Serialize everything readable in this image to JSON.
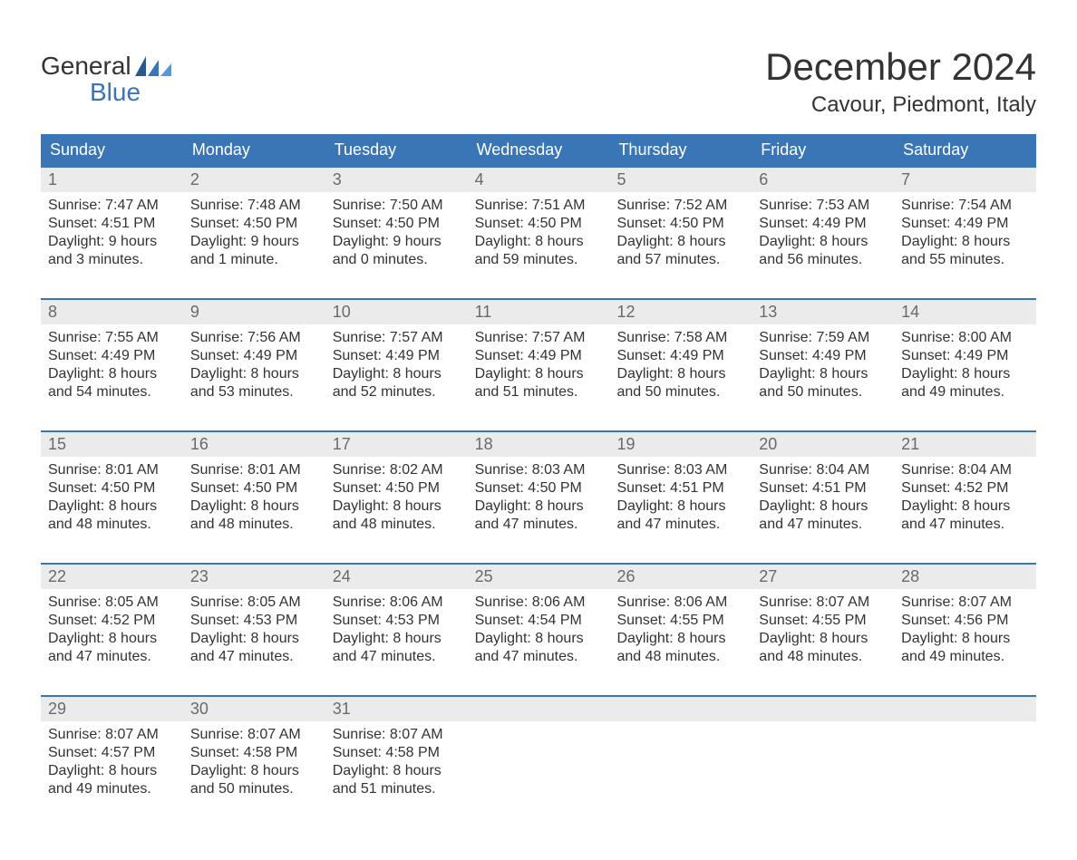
{
  "logo": {
    "word1": "General",
    "word2": "Blue"
  },
  "title": "December 2024",
  "subtitle": "Cavour, Piedmont, Italy",
  "colors": {
    "accent": "#3a76b5",
    "daynum_bg": "#ebebeb",
    "daynum_fg": "#6a6a6a",
    "text": "#333333",
    "bg": "#ffffff",
    "header_fg": "#ffffff"
  },
  "fonts": {
    "title_pt": 42,
    "subtitle_pt": 24,
    "weekday_pt": 18,
    "daynum_pt": 18,
    "body_pt": 16,
    "logo_pt": 28
  },
  "weekdays": [
    "Sunday",
    "Monday",
    "Tuesday",
    "Wednesday",
    "Thursday",
    "Friday",
    "Saturday"
  ],
  "weeks": [
    [
      {
        "num": "1",
        "sunrise": "Sunrise: 7:47 AM",
        "sunset": "Sunset: 4:51 PM",
        "d1": "Daylight: 9 hours",
        "d2": "and 3 minutes."
      },
      {
        "num": "2",
        "sunrise": "Sunrise: 7:48 AM",
        "sunset": "Sunset: 4:50 PM",
        "d1": "Daylight: 9 hours",
        "d2": "and 1 minute."
      },
      {
        "num": "3",
        "sunrise": "Sunrise: 7:50 AM",
        "sunset": "Sunset: 4:50 PM",
        "d1": "Daylight: 9 hours",
        "d2": "and 0 minutes."
      },
      {
        "num": "4",
        "sunrise": "Sunrise: 7:51 AM",
        "sunset": "Sunset: 4:50 PM",
        "d1": "Daylight: 8 hours",
        "d2": "and 59 minutes."
      },
      {
        "num": "5",
        "sunrise": "Sunrise: 7:52 AM",
        "sunset": "Sunset: 4:50 PM",
        "d1": "Daylight: 8 hours",
        "d2": "and 57 minutes."
      },
      {
        "num": "6",
        "sunrise": "Sunrise: 7:53 AM",
        "sunset": "Sunset: 4:49 PM",
        "d1": "Daylight: 8 hours",
        "d2": "and 56 minutes."
      },
      {
        "num": "7",
        "sunrise": "Sunrise: 7:54 AM",
        "sunset": "Sunset: 4:49 PM",
        "d1": "Daylight: 8 hours",
        "d2": "and 55 minutes."
      }
    ],
    [
      {
        "num": "8",
        "sunrise": "Sunrise: 7:55 AM",
        "sunset": "Sunset: 4:49 PM",
        "d1": "Daylight: 8 hours",
        "d2": "and 54 minutes."
      },
      {
        "num": "9",
        "sunrise": "Sunrise: 7:56 AM",
        "sunset": "Sunset: 4:49 PM",
        "d1": "Daylight: 8 hours",
        "d2": "and 53 minutes."
      },
      {
        "num": "10",
        "sunrise": "Sunrise: 7:57 AM",
        "sunset": "Sunset: 4:49 PM",
        "d1": "Daylight: 8 hours",
        "d2": "and 52 minutes."
      },
      {
        "num": "11",
        "sunrise": "Sunrise: 7:57 AM",
        "sunset": "Sunset: 4:49 PM",
        "d1": "Daylight: 8 hours",
        "d2": "and 51 minutes."
      },
      {
        "num": "12",
        "sunrise": "Sunrise: 7:58 AM",
        "sunset": "Sunset: 4:49 PM",
        "d1": "Daylight: 8 hours",
        "d2": "and 50 minutes."
      },
      {
        "num": "13",
        "sunrise": "Sunrise: 7:59 AM",
        "sunset": "Sunset: 4:49 PM",
        "d1": "Daylight: 8 hours",
        "d2": "and 50 minutes."
      },
      {
        "num": "14",
        "sunrise": "Sunrise: 8:00 AM",
        "sunset": "Sunset: 4:49 PM",
        "d1": "Daylight: 8 hours",
        "d2": "and 49 minutes."
      }
    ],
    [
      {
        "num": "15",
        "sunrise": "Sunrise: 8:01 AM",
        "sunset": "Sunset: 4:50 PM",
        "d1": "Daylight: 8 hours",
        "d2": "and 48 minutes."
      },
      {
        "num": "16",
        "sunrise": "Sunrise: 8:01 AM",
        "sunset": "Sunset: 4:50 PM",
        "d1": "Daylight: 8 hours",
        "d2": "and 48 minutes."
      },
      {
        "num": "17",
        "sunrise": "Sunrise: 8:02 AM",
        "sunset": "Sunset: 4:50 PM",
        "d1": "Daylight: 8 hours",
        "d2": "and 48 minutes."
      },
      {
        "num": "18",
        "sunrise": "Sunrise: 8:03 AM",
        "sunset": "Sunset: 4:50 PM",
        "d1": "Daylight: 8 hours",
        "d2": "and 47 minutes."
      },
      {
        "num": "19",
        "sunrise": "Sunrise: 8:03 AM",
        "sunset": "Sunset: 4:51 PM",
        "d1": "Daylight: 8 hours",
        "d2": "and 47 minutes."
      },
      {
        "num": "20",
        "sunrise": "Sunrise: 8:04 AM",
        "sunset": "Sunset: 4:51 PM",
        "d1": "Daylight: 8 hours",
        "d2": "and 47 minutes."
      },
      {
        "num": "21",
        "sunrise": "Sunrise: 8:04 AM",
        "sunset": "Sunset: 4:52 PM",
        "d1": "Daylight: 8 hours",
        "d2": "and 47 minutes."
      }
    ],
    [
      {
        "num": "22",
        "sunrise": "Sunrise: 8:05 AM",
        "sunset": "Sunset: 4:52 PM",
        "d1": "Daylight: 8 hours",
        "d2": "and 47 minutes."
      },
      {
        "num": "23",
        "sunrise": "Sunrise: 8:05 AM",
        "sunset": "Sunset: 4:53 PM",
        "d1": "Daylight: 8 hours",
        "d2": "and 47 minutes."
      },
      {
        "num": "24",
        "sunrise": "Sunrise: 8:06 AM",
        "sunset": "Sunset: 4:53 PM",
        "d1": "Daylight: 8 hours",
        "d2": "and 47 minutes."
      },
      {
        "num": "25",
        "sunrise": "Sunrise: 8:06 AM",
        "sunset": "Sunset: 4:54 PM",
        "d1": "Daylight: 8 hours",
        "d2": "and 47 minutes."
      },
      {
        "num": "26",
        "sunrise": "Sunrise: 8:06 AM",
        "sunset": "Sunset: 4:55 PM",
        "d1": "Daylight: 8 hours",
        "d2": "and 48 minutes."
      },
      {
        "num": "27",
        "sunrise": "Sunrise: 8:07 AM",
        "sunset": "Sunset: 4:55 PM",
        "d1": "Daylight: 8 hours",
        "d2": "and 48 minutes."
      },
      {
        "num": "28",
        "sunrise": "Sunrise: 8:07 AM",
        "sunset": "Sunset: 4:56 PM",
        "d1": "Daylight: 8 hours",
        "d2": "and 49 minutes."
      }
    ],
    [
      {
        "num": "29",
        "sunrise": "Sunrise: 8:07 AM",
        "sunset": "Sunset: 4:57 PM",
        "d1": "Daylight: 8 hours",
        "d2": "and 49 minutes."
      },
      {
        "num": "30",
        "sunrise": "Sunrise: 8:07 AM",
        "sunset": "Sunset: 4:58 PM",
        "d1": "Daylight: 8 hours",
        "d2": "and 50 minutes."
      },
      {
        "num": "31",
        "sunrise": "Sunrise: 8:07 AM",
        "sunset": "Sunset: 4:58 PM",
        "d1": "Daylight: 8 hours",
        "d2": "and 51 minutes."
      },
      {
        "empty": true
      },
      {
        "empty": true
      },
      {
        "empty": true
      },
      {
        "empty": true
      }
    ]
  ]
}
